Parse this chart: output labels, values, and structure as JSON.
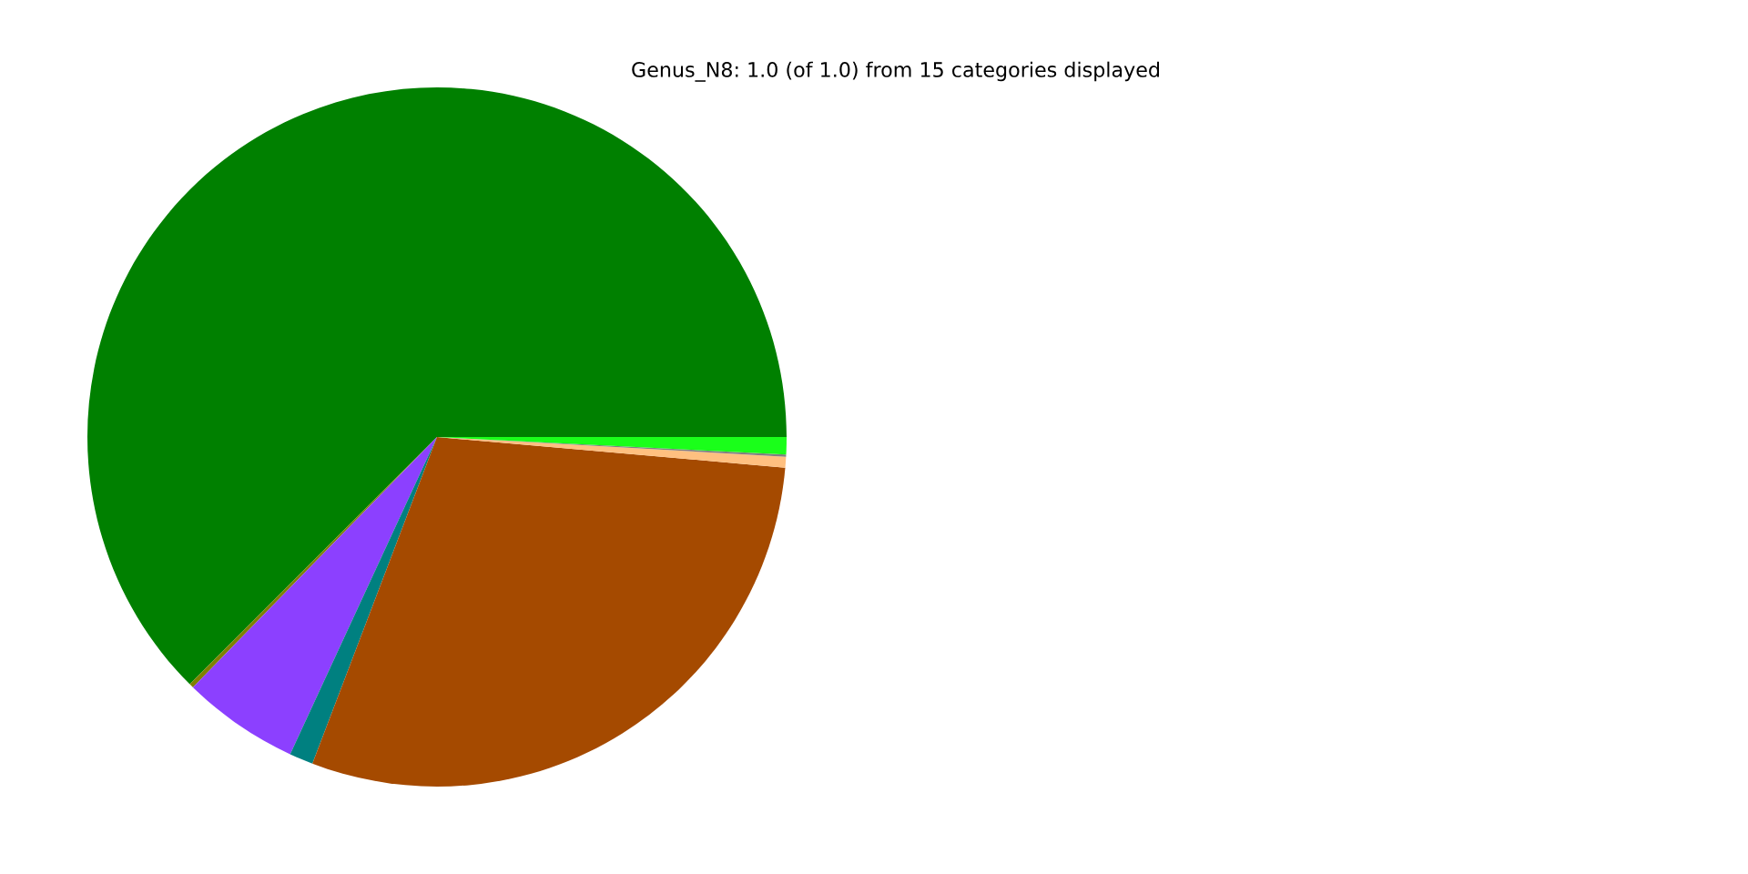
{
  "chart_data": {
    "type": "pie",
    "title": "Genus_N8: 1.0 (of 1.0) from 15 categories displayed",
    "categories": [
      null,
      null,
      null,
      null,
      null,
      null,
      null,
      null
    ],
    "values": [
      62.5,
      0.2,
      5.4,
      1.1,
      29.4,
      0.5,
      0.1,
      0.8
    ],
    "colors": [
      "#008000",
      "#808000",
      "#8c40ff",
      "#008080",
      "#a54a00",
      "#ffc080",
      "#808080",
      "#1aff1a"
    ],
    "legend": false
  }
}
